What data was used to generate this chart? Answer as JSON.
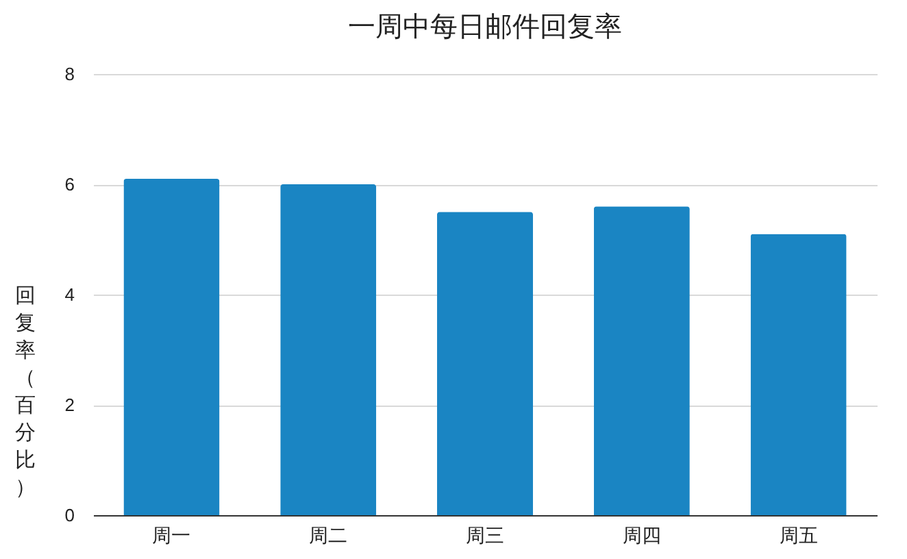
{
  "chart_data": {
    "type": "bar",
    "title": "一周中每日邮件回复率",
    "ylabel": "回复率（百分比）",
    "categories": [
      "周一",
      "周二",
      "周三",
      "周四",
      "周五"
    ],
    "values": [
      6.1,
      6.0,
      5.5,
      5.6,
      5.1
    ],
    "color": "#1a85c3",
    "ylim": [
      0,
      8
    ],
    "yticks": [
      0,
      2,
      4,
      6,
      8
    ],
    "grid": "y"
  }
}
